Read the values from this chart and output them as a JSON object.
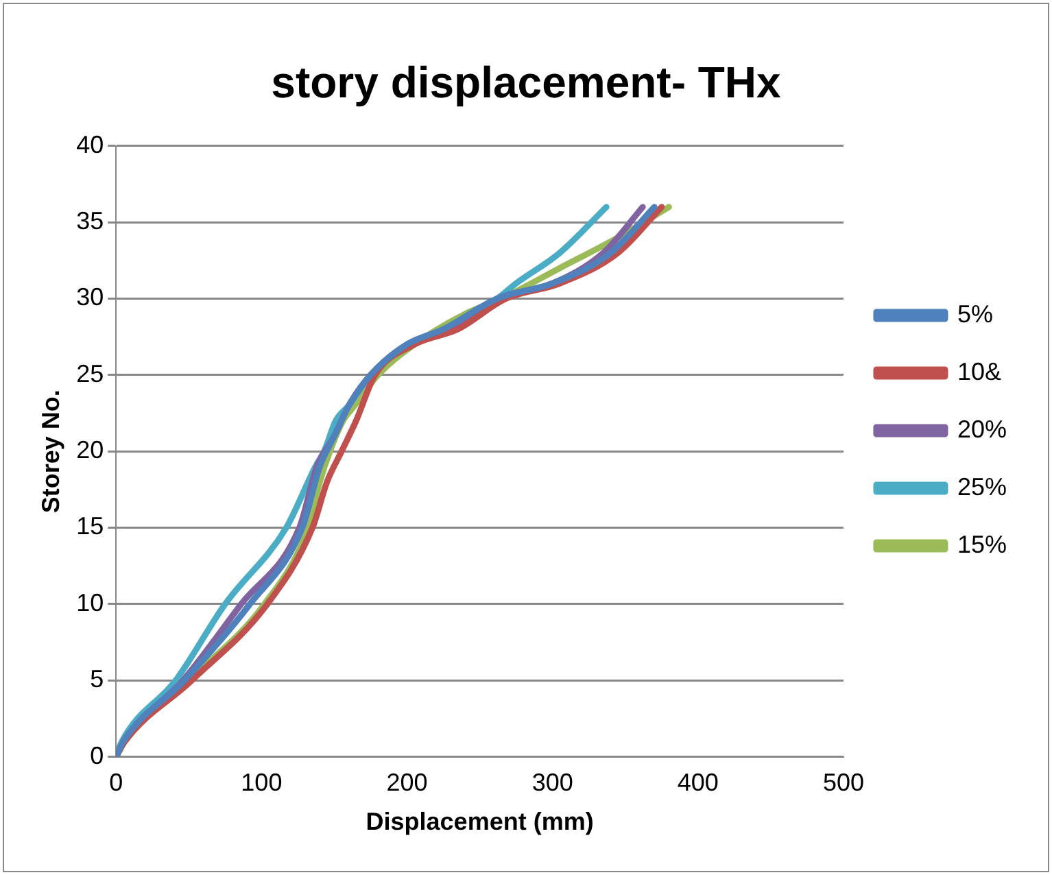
{
  "chart_data": {
    "type": "line",
    "title": "story displacement- THx",
    "xlabel": "Displacement (mm)",
    "ylabel": "Storey No.",
    "xlim": [
      0,
      500
    ],
    "xticks": [
      0,
      100,
      200,
      300,
      400,
      500
    ],
    "ylim": [
      0,
      40
    ],
    "yticks": [
      0,
      5,
      10,
      15,
      20,
      25,
      30,
      35,
      40
    ],
    "grid": "y",
    "legend": "right",
    "marker": "none",
    "line_style": "solid",
    "series": [
      {
        "name": "5%",
        "color": "#4f81bd",
        "x": [
          0,
          5,
          47,
          92,
          128,
          140,
          150,
          160,
          175,
          200,
          225,
          262,
          300,
          340,
          370
        ],
        "values": [
          0,
          1,
          5,
          10,
          15,
          19,
          21,
          23,
          25,
          27,
          28,
          30,
          31,
          33,
          36
        ]
      },
      {
        "name": "10&",
        "color": "#c0504d",
        "x": [
          0,
          6,
          52,
          104,
          135,
          145,
          155,
          165,
          178,
          205,
          235,
          268,
          305,
          345,
          375
        ],
        "values": [
          0,
          1,
          5,
          10,
          15,
          18,
          20,
          22,
          25,
          27,
          28,
          30,
          31,
          33,
          36
        ]
      },
      {
        "name": "20%",
        "color": "#8064a2",
        "x": [
          0,
          5,
          46,
          86,
          126,
          138,
          150,
          160,
          175,
          200,
          228,
          262,
          300,
          335,
          362
        ],
        "values": [
          0,
          1,
          5,
          10,
          15,
          19,
          21,
          23,
          25,
          27,
          28,
          30,
          31,
          33,
          36
        ]
      },
      {
        "name": "25%",
        "color": "#4bacc6",
        "x": [
          0,
          4,
          41,
          75,
          117,
          137,
          143,
          151,
          160,
          175,
          200,
          228,
          262,
          275,
          305,
          337
        ],
        "values": [
          0,
          1,
          5,
          10,
          15,
          19,
          20,
          22,
          23,
          25,
          27,
          28,
          30,
          31,
          33,
          36
        ]
      },
      {
        "name": "15%",
        "color": "#9bbb59",
        "x": [
          0,
          6,
          50,
          102,
          132,
          140,
          147,
          156,
          164,
          180,
          205,
          240,
          265,
          305,
          345,
          380
        ],
        "values": [
          0,
          1,
          5,
          10,
          15,
          18,
          20,
          22,
          23,
          25,
          27,
          29,
          30,
          32,
          34,
          36
        ]
      }
    ]
  }
}
